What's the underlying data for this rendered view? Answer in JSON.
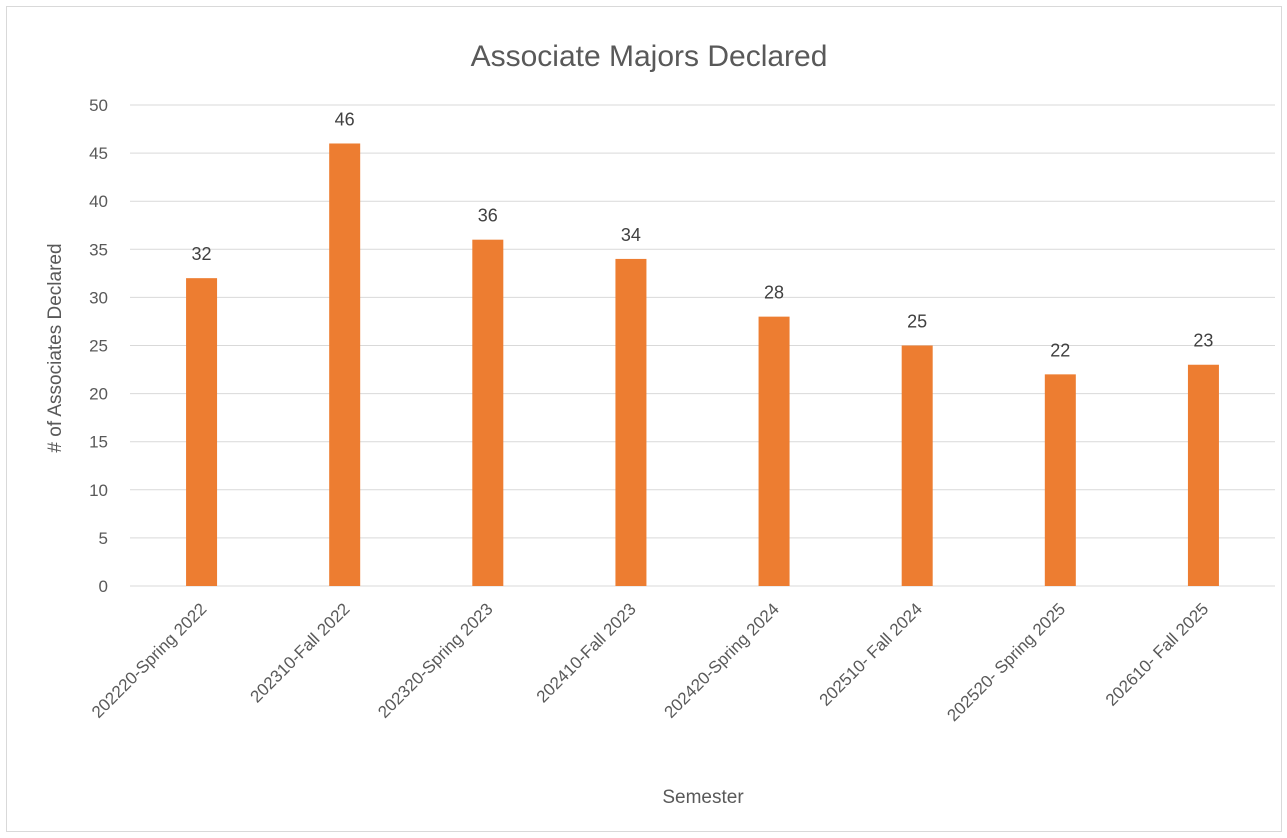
{
  "chart_data": {
    "type": "bar",
    "title": "Associate Majors Declared",
    "xlabel": "Semester",
    "ylabel": "# of Associates Declared",
    "categories": [
      "202220-Spring 2022",
      "202310-Fall 2022",
      "202320-Spring 2023",
      "202410-Fall 2023",
      "202420-Spring 2024",
      "202510- Fall 2024",
      "202520- Spring 2025",
      "202610- Fall 2025"
    ],
    "values": [
      32,
      46,
      36,
      34,
      28,
      25,
      22,
      23
    ],
    "ylim": [
      0,
      50
    ],
    "yticks": [
      0,
      5,
      10,
      15,
      20,
      25,
      30,
      35,
      40,
      45,
      50
    ],
    "grid": true,
    "data_labels": true,
    "bar_color": "#ED7D31"
  }
}
